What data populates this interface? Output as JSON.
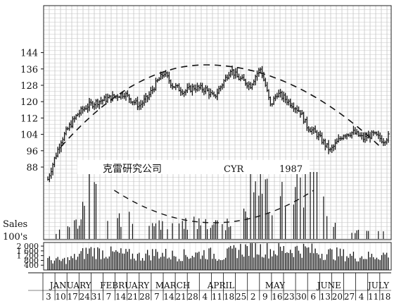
{
  "chart_data": {
    "type": "bar",
    "title": "克雷研究公司",
    "ticker": "CYR",
    "year": "1987",
    "price_axis": {
      "ticks": [
        88,
        96,
        104,
        112,
        120,
        128,
        136,
        144
      ],
      "ylim": [
        80,
        146
      ]
    },
    "sales_axis": {
      "label_line1": "Sales",
      "label_line2": "100's",
      "ticks": [
        400,
        800,
        1200,
        1600,
        2000
      ],
      "tick_labels": [
        "400",
        "800",
        "1 200",
        "1 600",
        "2 000"
      ],
      "ylim": [
        0,
        2300
      ]
    },
    "months": [
      "JANUARY",
      "FEBRUARY",
      "MARCH",
      "APRIL",
      "MAY",
      "JUNE",
      "JULY"
    ],
    "week_dates": [
      "3",
      "10",
      "17",
      "24",
      "31",
      "7",
      "14",
      "21",
      "28",
      "7",
      "14",
      "21",
      "28",
      "4",
      "11",
      "18",
      "25",
      "2",
      "9",
      "16",
      "23",
      "30",
      "6",
      "13",
      "20",
      "27",
      "4",
      "11",
      "18"
    ],
    "month_start_week_index": [
      0,
      5,
      9,
      13,
      17,
      22,
      26
    ],
    "price_key": [
      [
        0,
        82
      ],
      [
        4,
        92
      ],
      [
        8,
        101
      ],
      [
        13,
        108
      ],
      [
        18,
        114
      ],
      [
        24,
        118
      ],
      [
        30,
        120
      ],
      [
        38,
        122
      ],
      [
        46,
        124
      ],
      [
        50,
        121
      ],
      [
        55,
        118
      ],
      [
        60,
        122
      ],
      [
        66,
        130
      ],
      [
        70,
        134
      ],
      [
        75,
        128
      ],
      [
        82,
        125
      ],
      [
        88,
        127
      ],
      [
        95,
        126
      ],
      [
        100,
        122
      ],
      [
        106,
        130
      ],
      [
        110,
        136
      ],
      [
        114,
        132
      ],
      [
        118,
        130
      ],
      [
        122,
        128
      ],
      [
        126,
        134
      ],
      [
        128,
        136
      ],
      [
        131,
        128
      ],
      [
        134,
        118
      ],
      [
        138,
        124
      ],
      [
        142,
        122
      ],
      [
        148,
        118
      ],
      [
        152,
        115
      ],
      [
        156,
        108
      ],
      [
        162,
        104
      ],
      [
        167,
        99
      ],
      [
        170,
        96
      ],
      [
        173,
        99
      ],
      [
        178,
        104
      ],
      [
        184,
        105
      ],
      [
        190,
        102
      ],
      [
        196,
        104
      ],
      [
        202,
        101
      ],
      [
        205,
        103
      ]
    ],
    "volume_key": [
      [
        0,
        900
      ],
      [
        8,
        800
      ],
      [
        15,
        1000
      ],
      [
        25,
        1700
      ],
      [
        35,
        1500
      ],
      [
        45,
        1400
      ],
      [
        55,
        1200
      ],
      [
        65,
        1500
      ],
      [
        75,
        1300
      ],
      [
        85,
        1300
      ],
      [
        95,
        1500
      ],
      [
        105,
        1200
      ],
      [
        115,
        1800
      ],
      [
        125,
        1900
      ],
      [
        135,
        1700
      ],
      [
        145,
        1800
      ],
      [
        155,
        1800
      ],
      [
        165,
        1500
      ],
      [
        175,
        1400
      ],
      [
        185,
        1200
      ],
      [
        195,
        1200
      ],
      [
        205,
        1400
      ]
    ],
    "activity_key": [
      [
        0,
        5
      ],
      [
        10,
        18
      ],
      [
        20,
        30
      ],
      [
        24,
        130
      ],
      [
        30,
        65
      ],
      [
        40,
        38
      ],
      [
        55,
        30
      ],
      [
        70,
        26
      ],
      [
        85,
        28
      ],
      [
        100,
        24
      ],
      [
        112,
        30
      ],
      [
        120,
        48
      ],
      [
        124,
        140
      ],
      [
        128,
        95
      ],
      [
        136,
        55
      ],
      [
        142,
        75
      ],
      [
        150,
        118
      ],
      [
        156,
        85
      ],
      [
        160,
        132
      ],
      [
        164,
        60
      ],
      [
        175,
        18
      ],
      [
        190,
        12
      ],
      [
        205,
        10
      ]
    ],
    "cup_curve": {
      "upper_arc": {
        "start_day": 8,
        "peak_day": 95,
        "end_day": 200,
        "low_value": 98,
        "peak_value": 138
      },
      "lower_arc": {
        "start_day": 40,
        "bottom_day": 100,
        "end_day": 160,
        "bottom_value": "mid-activity"
      }
    }
  }
}
